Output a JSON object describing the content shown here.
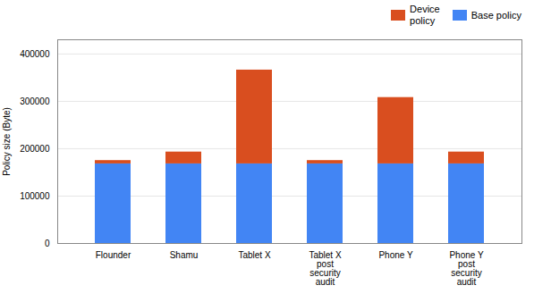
{
  "chart_data": {
    "type": "bar",
    "stacked": true,
    "categories": [
      "Flounder",
      "Shamu",
      "Tablet X",
      "Tablet X\npost\nsecurity\naudit",
      "Phone Y",
      "Phone Y\npost\nsecurity\naudit"
    ],
    "series": [
      {
        "name": "Base policy",
        "color": "#4285f4",
        "values": [
          168000,
          168000,
          168000,
          168000,
          168000,
          168000
        ]
      },
      {
        "name": "Device\npolicy",
        "color": "#d94e1f",
        "values": [
          7000,
          25000,
          198000,
          7000,
          140000,
          25000
        ]
      }
    ],
    "ylabel": "Policy size (Byte)",
    "ylim": [
      0,
      430000
    ],
    "yticks": [
      0,
      100000,
      200000,
      300000,
      400000
    ],
    "grid": true,
    "legend": "upper right"
  }
}
